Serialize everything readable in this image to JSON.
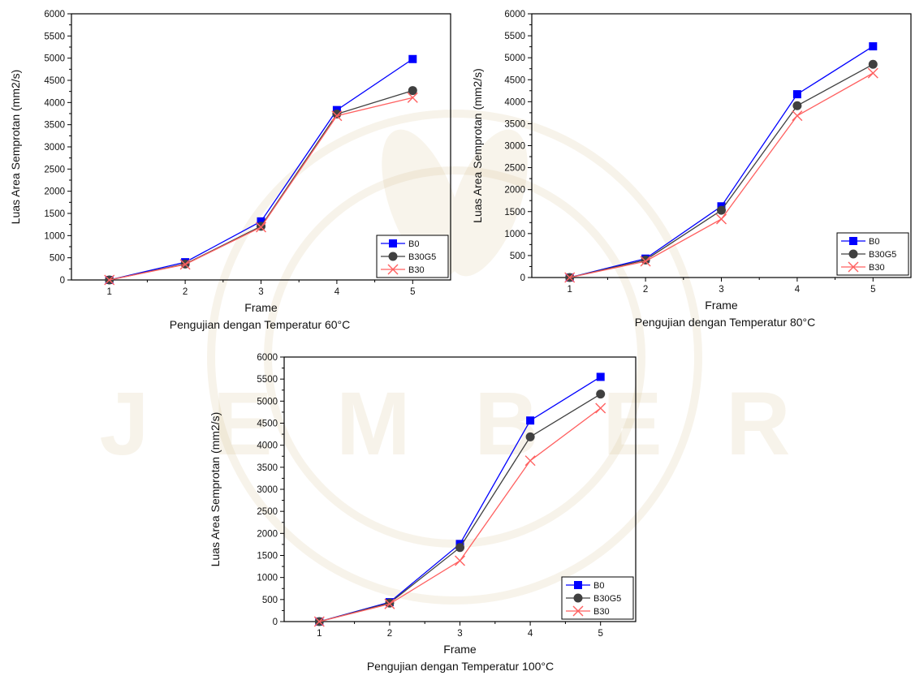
{
  "watermark": {
    "text": "J E M B E R",
    "color": "#c8a866"
  },
  "chart_data": [
    {
      "type": "line",
      "xlabel": "Frame",
      "ylabel": "Luas Area Semprotan (mm2/s)",
      "caption": "Pengujian dengan Temperatur 60°C",
      "x": [
        1,
        2,
        3,
        4,
        5
      ],
      "xlim": [
        0.5,
        5.5
      ],
      "ylim": [
        0,
        6000
      ],
      "yticks": [
        0,
        500,
        1000,
        1500,
        2000,
        2500,
        3000,
        3500,
        4000,
        4500,
        5000,
        5500,
        6000
      ],
      "legend_position": "bottom-right",
      "series": [
        {
          "name": "B0",
          "color": "#0000ff",
          "marker": "square",
          "values": [
            0,
            400,
            1320,
            3830,
            4980
          ]
        },
        {
          "name": "B30G5",
          "color": "#404040",
          "marker": "circle",
          "values": [
            0,
            360,
            1210,
            3740,
            4270
          ]
        },
        {
          "name": "B30",
          "color": "#ff6060",
          "marker": "x",
          "values": [
            0,
            350,
            1190,
            3700,
            4110
          ]
        }
      ]
    },
    {
      "type": "line",
      "xlabel": "Frame",
      "ylabel": "Luas Area Semprotan (mm2/s)",
      "caption": "Pengujian dengan Temperatur 80°C",
      "x": [
        1,
        2,
        3,
        4,
        5
      ],
      "xlim": [
        0.5,
        5.5
      ],
      "ylim": [
        0,
        6000
      ],
      "yticks": [
        0,
        500,
        1000,
        1500,
        2000,
        2500,
        3000,
        3500,
        4000,
        4500,
        5000,
        5500,
        6000
      ],
      "legend_position": "bottom-right",
      "series": [
        {
          "name": "B0",
          "color": "#0000ff",
          "marker": "square",
          "values": [
            0,
            430,
            1620,
            4170,
            5260
          ]
        },
        {
          "name": "B30G5",
          "color": "#404040",
          "marker": "circle",
          "values": [
            0,
            400,
            1530,
            3910,
            4850
          ]
        },
        {
          "name": "B30",
          "color": "#ff6060",
          "marker": "x",
          "values": [
            0,
            370,
            1330,
            3680,
            4650
          ]
        }
      ]
    },
    {
      "type": "line",
      "xlabel": "Frame",
      "ylabel": "Luas Area Semprotan (mm2/s)",
      "caption": "Pengujian dengan Temperatur 100°C",
      "x": [
        1,
        2,
        3,
        4,
        5
      ],
      "xlim": [
        0.5,
        5.5
      ],
      "ylim": [
        0,
        6000
      ],
      "yticks": [
        0,
        500,
        1000,
        1500,
        2000,
        2500,
        3000,
        3500,
        4000,
        4500,
        5000,
        5500,
        6000
      ],
      "legend_position": "bottom-right",
      "series": [
        {
          "name": "B0",
          "color": "#0000ff",
          "marker": "square",
          "values": [
            0,
            440,
            1760,
            4560,
            5550
          ]
        },
        {
          "name": "B30G5",
          "color": "#404040",
          "marker": "circle",
          "values": [
            0,
            420,
            1680,
            4190,
            5160
          ]
        },
        {
          "name": "B30",
          "color": "#ff6060",
          "marker": "x",
          "values": [
            0,
            400,
            1380,
            3650,
            4840
          ]
        }
      ]
    }
  ]
}
